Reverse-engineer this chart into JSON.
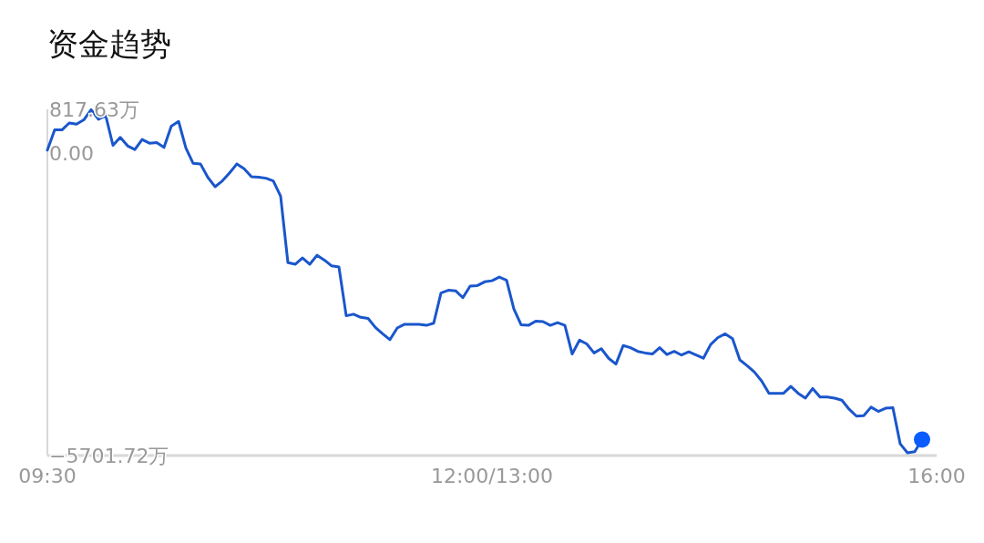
{
  "chart_data": {
    "type": "line",
    "title": "资金趋势",
    "categories": [
      "09:30",
      null,
      null,
      null,
      null,
      null,
      null,
      null,
      null,
      null,
      null,
      null,
      null,
      null,
      null,
      null,
      null,
      null,
      null,
      null,
      null,
      null,
      null,
      null,
      null,
      null,
      null,
      null,
      null,
      null,
      null,
      null,
      null,
      null,
      null,
      null,
      null,
      null,
      null,
      null,
      null,
      null,
      null,
      null,
      null,
      null,
      null,
      null,
      null,
      null,
      null,
      null,
      null,
      null,
      null,
      null,
      null,
      null,
      null,
      null,
      null,
      "12:00/13:00",
      null,
      null,
      null,
      null,
      null,
      null,
      null,
      null,
      null,
      null,
      null,
      null,
      null,
      null,
      null,
      null,
      null,
      null,
      null,
      null,
      null,
      null,
      null,
      null,
      null,
      null,
      null,
      null,
      null,
      null,
      null,
      null,
      null,
      null,
      null,
      null,
      null,
      null,
      null,
      null,
      null,
      null,
      null,
      null,
      null,
      null,
      null,
      null,
      null,
      null,
      null,
      null,
      null,
      null,
      null,
      null,
      null,
      null,
      null,
      null,
      "16:00"
    ],
    "ylim": [
      -5701.72,
      817.63
    ],
    "yticks": [
      {
        "value": 817.63,
        "label": "817.63万"
      },
      {
        "value": 0,
        "label": "0.00"
      },
      {
        "value": -5701.72,
        "label": "−5701.72万"
      }
    ],
    "grid": false,
    "series": [
      {
        "color": "#1a56cc",
        "marker": "none",
        "values": [
          50,
          430,
          430,
          560,
          540,
          620,
          810,
          630,
          700,
          140,
          290,
          130,
          60,
          250,
          180,
          190,
          100,
          500,
          590,
          90,
          -200,
          -210,
          -460,
          -640,
          -530,
          -380,
          -210,
          -300,
          -450,
          -460,
          -480,
          -530,
          -820,
          -2070,
          -2100,
          -1980,
          -2100,
          -1930,
          -2020,
          -2130,
          -2150,
          -3070,
          -3040,
          -3100,
          -3120,
          -3290,
          -3410,
          -3520,
          -3300,
          -3230,
          -3230,
          -3230,
          -3250,
          -3210,
          -2640,
          -2590,
          -2600,
          -2730,
          -2510,
          -2500,
          -2430,
          -2410,
          -2340,
          -2400,
          -2940,
          -3240,
          -3250,
          -3170,
          -3180,
          -3250,
          -3200,
          -3250,
          -3790,
          -3530,
          -3600,
          -3770,
          -3690,
          -3870,
          -3980,
          -3630,
          -3670,
          -3740,
          -3770,
          -3790,
          -3670,
          -3800,
          -3740,
          -3810,
          -3750,
          -3810,
          -3870,
          -3610,
          -3480,
          -3410,
          -3500,
          -3900,
          -4010,
          -4130,
          -4300,
          -4530,
          -4530,
          -4530,
          -4400,
          -4530,
          -4620,
          -4440,
          -4600,
          -4600,
          -4620,
          -4660,
          -4830,
          -4960,
          -4950,
          -4790,
          -4870,
          -4810,
          -4800,
          -5480,
          -5650,
          -5630,
          -5400,
          null,
          null
        ]
      },
      {
        "type": "scatter",
        "color": "#0a5cff",
        "marker": "circle",
        "values": [
          null,
          null,
          null,
          null,
          null,
          null,
          null,
          null,
          null,
          null,
          null,
          null,
          null,
          null,
          null,
          null,
          null,
          null,
          null,
          null,
          null,
          null,
          null,
          null,
          null,
          null,
          null,
          null,
          null,
          null,
          null,
          null,
          null,
          null,
          null,
          null,
          null,
          null,
          null,
          null,
          null,
          null,
          null,
          null,
          null,
          null,
          null,
          null,
          null,
          null,
          null,
          null,
          null,
          null,
          null,
          null,
          null,
          null,
          null,
          null,
          null,
          null,
          null,
          null,
          null,
          null,
          null,
          null,
          null,
          null,
          null,
          null,
          null,
          null,
          null,
          null,
          null,
          null,
          null,
          null,
          null,
          null,
          null,
          null,
          null,
          null,
          null,
          null,
          null,
          null,
          null,
          null,
          null,
          null,
          null,
          null,
          null,
          null,
          null,
          null,
          null,
          null,
          null,
          null,
          null,
          null,
          null,
          null,
          null,
          null,
          null,
          null,
          null,
          null,
          null,
          null,
          null,
          null,
          null,
          null,
          -5400,
          null,
          null
        ]
      }
    ]
  }
}
